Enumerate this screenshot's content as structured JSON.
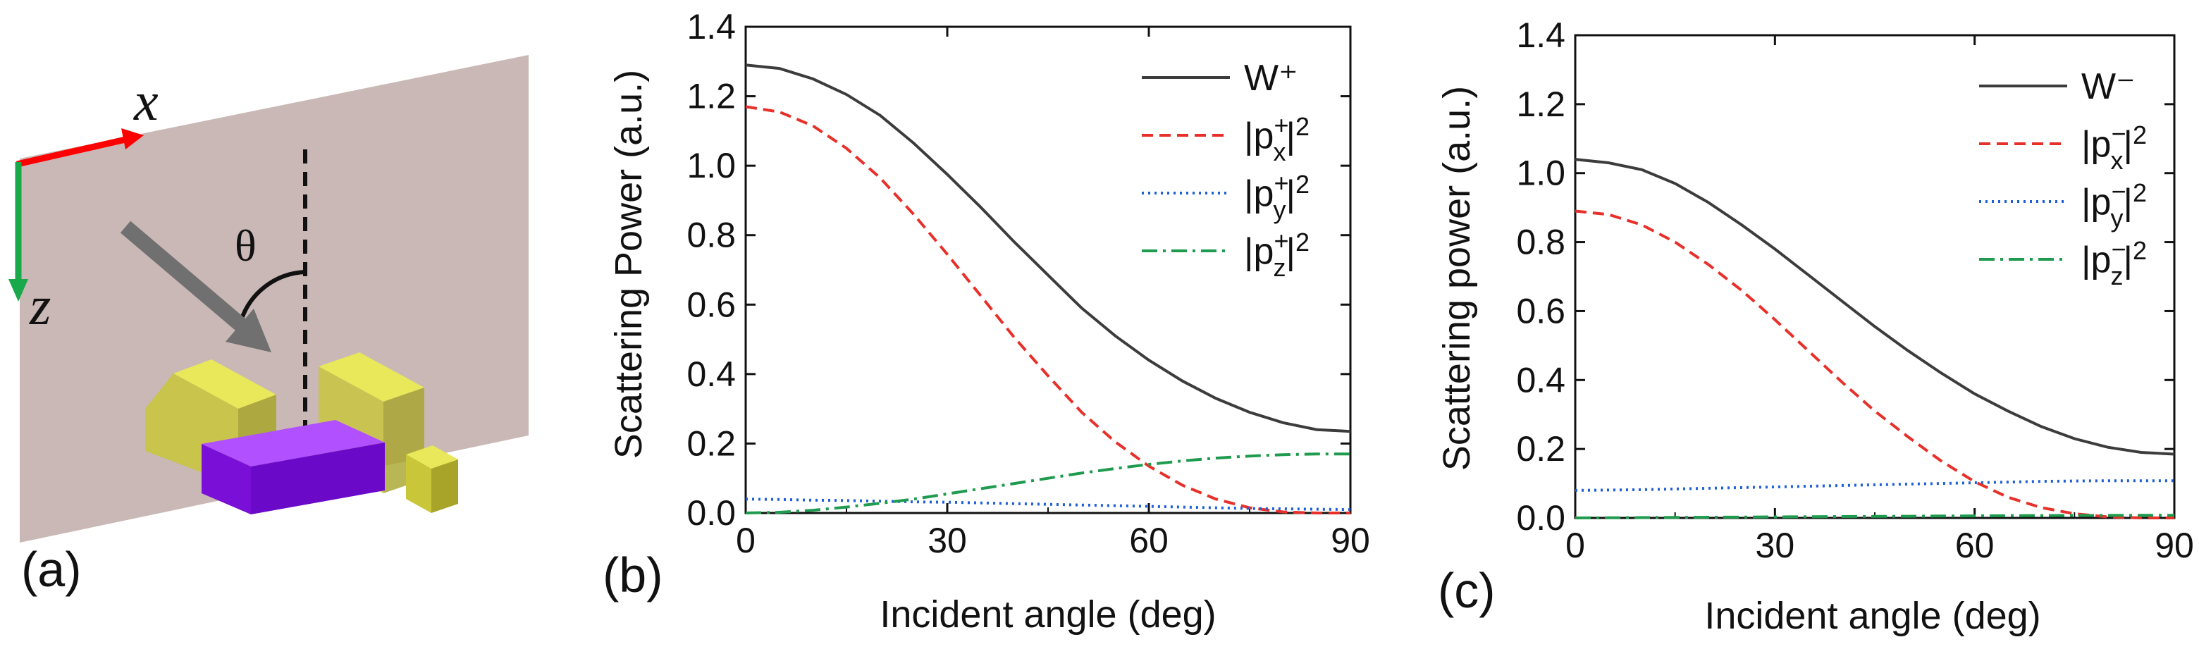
{
  "figure": {
    "panel_a": {
      "label": "(a)",
      "x_axis_symbol": "x",
      "z_axis_symbol": "z",
      "angle_symbol": "θ",
      "colors": {
        "sheet": "#c9b8b5",
        "x_axis": "#ff0000",
        "z_axis": "#19a84a",
        "arrow": "#707070",
        "block_yellow": "#d8d840",
        "block_purple": "#8a18ea"
      }
    },
    "panel_b": {
      "label": "(b)"
    },
    "panel_c": {
      "label": "(c)"
    }
  },
  "chart_data": [
    {
      "type": "line",
      "panel": "(b)",
      "xlabel": "Incident angle (deg)",
      "ylabel": "Scattering Power (a.u.)",
      "xlim": [
        0,
        90
      ],
      "ylim": [
        0,
        1.4
      ],
      "xticks": [
        0,
        30,
        60,
        90
      ],
      "yticks": [
        0.0,
        0.2,
        0.4,
        0.6,
        0.8,
        1.0,
        1.2,
        1.4
      ],
      "legend_position": "top-right",
      "x": [
        0,
        5,
        10,
        15,
        20,
        25,
        30,
        35,
        40,
        45,
        50,
        55,
        60,
        65,
        70,
        75,
        80,
        85,
        90
      ],
      "series": [
        {
          "name": "W⁺",
          "style": "solid",
          "color": "#3c3c3c",
          "values": [
            1.29,
            1.28,
            1.25,
            1.205,
            1.145,
            1.065,
            0.975,
            0.88,
            0.78,
            0.685,
            0.59,
            0.51,
            0.44,
            0.38,
            0.33,
            0.29,
            0.26,
            0.24,
            0.235
          ]
        },
        {
          "name": "|px⁺|²",
          "style": "dashed",
          "color": "#e8302a",
          "values": [
            1.17,
            1.155,
            1.115,
            1.05,
            0.965,
            0.86,
            0.745,
            0.625,
            0.505,
            0.395,
            0.29,
            0.205,
            0.135,
            0.08,
            0.04,
            0.015,
            0.003,
            0.0,
            0.0
          ]
        },
        {
          "name": "|py⁺|²",
          "style": "dotted",
          "color": "#1f5fd6",
          "values": [
            0.04,
            0.039,
            0.037,
            0.036,
            0.034,
            0.032,
            0.031,
            0.029,
            0.027,
            0.025,
            0.023,
            0.021,
            0.019,
            0.017,
            0.015,
            0.013,
            0.012,
            0.011,
            0.01
          ]
        },
        {
          "name": "|pz⁺|²",
          "style": "dashdot",
          "color": "#1e9b4e",
          "values": [
            0.0,
            0.002,
            0.008,
            0.017,
            0.028,
            0.04,
            0.055,
            0.07,
            0.085,
            0.1,
            0.115,
            0.128,
            0.14,
            0.15,
            0.158,
            0.164,
            0.168,
            0.17,
            0.17
          ]
        }
      ]
    },
    {
      "type": "line",
      "panel": "(c)",
      "xlabel": "Incident angle (deg)",
      "ylabel": "Scattering power (a.u.)",
      "xlim": [
        0,
        90
      ],
      "ylim": [
        0,
        1.4
      ],
      "xticks": [
        0,
        30,
        60,
        90
      ],
      "yticks": [
        0.0,
        0.2,
        0.4,
        0.6,
        0.8,
        1.0,
        1.2,
        1.4
      ],
      "legend_position": "top-right",
      "x": [
        0,
        5,
        10,
        15,
        20,
        25,
        30,
        35,
        40,
        45,
        50,
        55,
        60,
        65,
        70,
        75,
        80,
        85,
        90
      ],
      "series": [
        {
          "name": "W⁻",
          "style": "solid",
          "color": "#3c3c3c",
          "values": [
            1.04,
            1.03,
            1.01,
            0.97,
            0.915,
            0.85,
            0.78,
            0.705,
            0.63,
            0.555,
            0.485,
            0.42,
            0.36,
            0.31,
            0.265,
            0.23,
            0.205,
            0.19,
            0.185
          ]
        },
        {
          "name": "|px⁻|²",
          "style": "dashed",
          "color": "#e8302a",
          "values": [
            0.89,
            0.88,
            0.85,
            0.8,
            0.735,
            0.66,
            0.575,
            0.485,
            0.395,
            0.31,
            0.235,
            0.165,
            0.105,
            0.06,
            0.03,
            0.012,
            0.003,
            0.0,
            0.0
          ]
        },
        {
          "name": "|py⁻|²",
          "style": "dotted",
          "color": "#1f5fd6",
          "values": [
            0.08,
            0.081,
            0.082,
            0.084,
            0.086,
            0.088,
            0.09,
            0.092,
            0.094,
            0.096,
            0.098,
            0.1,
            0.102,
            0.104,
            0.106,
            0.107,
            0.108,
            0.108,
            0.108
          ]
        },
        {
          "name": "|pz⁻|²",
          "style": "dashdot",
          "color": "#1e9b4e",
          "values": [
            0.0,
            0.0005,
            0.001,
            0.0015,
            0.002,
            0.0025,
            0.003,
            0.0035,
            0.004,
            0.0045,
            0.005,
            0.0055,
            0.006,
            0.0065,
            0.007,
            0.0072,
            0.0074,
            0.0075,
            0.0075
          ]
        }
      ]
    }
  ]
}
